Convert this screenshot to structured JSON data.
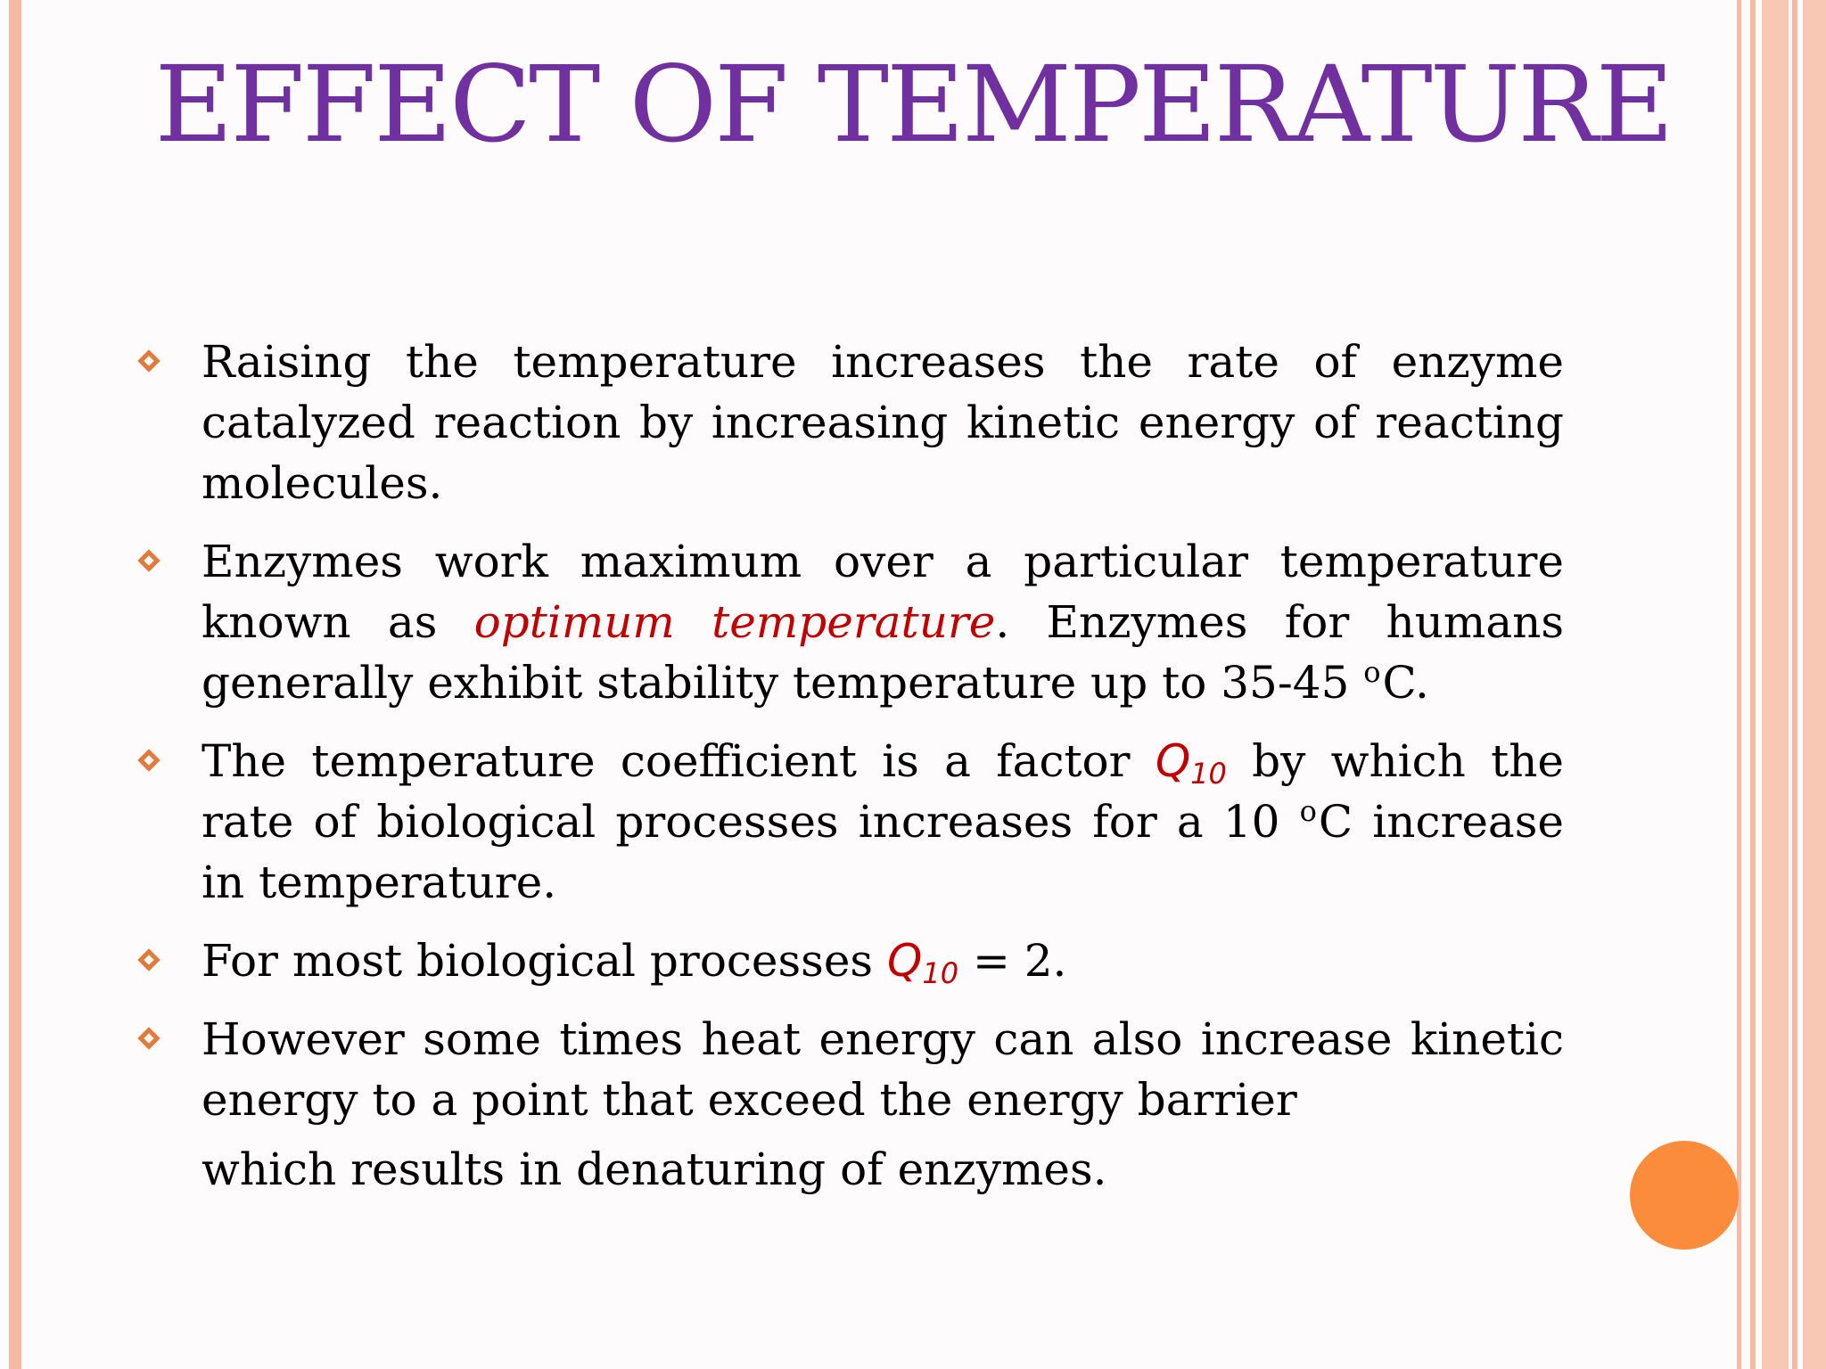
{
  "slide": {
    "title": "EFFECT OF TEMPERATURE",
    "bullets": [
      {
        "text": "Raising the temperature increases the rate of enzyme catalyzed reaction by increasing kinetic energy of reacting molecules."
      },
      {
        "text_before": "Enzymes work maximum over a particular temperature known as ",
        "highlight": "optimum temperature",
        "text_after": ". Enzymes for humans generally exhibit stability temperature up to 35-45 ",
        "degree": "o",
        "unit_end": "C."
      },
      {
        "text_before": "The temperature coefficient is a factor ",
        "q_symbol": "Q",
        "q_subscript": "10",
        "text_middle": " by which the rate of biological processes increases for a 10 ",
        "degree": "o",
        "text_after": "C increase in temperature."
      },
      {
        "text_before": "For most biological processes ",
        "q_symbol": "Q",
        "q_subscript": "10",
        "text_after": " = 2."
      },
      {
        "text_main": "However some times heat energy can also increase kinetic energy to a point that exceed the energy barrier",
        "text_last": "which results in denaturing of enzymes."
      }
    ]
  },
  "theme": {
    "title_color": "#7030a0",
    "highlight_color": "#c00000",
    "bullet_color": "#e07b39",
    "stripe_color": "#f6b9a4",
    "circle_color": "#fb8c3c"
  }
}
